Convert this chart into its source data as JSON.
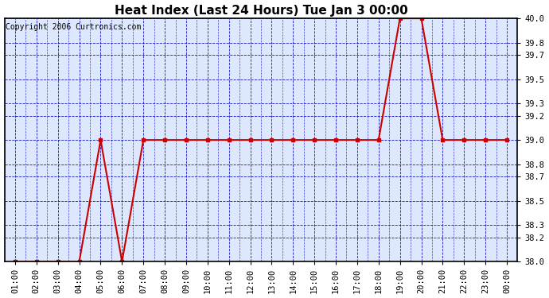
{
  "title": "Heat Index (Last 24 Hours) Tue Jan 3 00:00",
  "copyright": "Copyright 2006 Curtronics.com",
  "x_labels": [
    "01:00",
    "02:00",
    "03:00",
    "04:00",
    "05:00",
    "06:00",
    "07:00",
    "08:00",
    "09:00",
    "10:00",
    "11:00",
    "12:00",
    "13:00",
    "14:00",
    "15:00",
    "16:00",
    "17:00",
    "18:00",
    "19:00",
    "20:00",
    "21:00",
    "22:00",
    "23:00",
    "00:00"
  ],
  "y_values": [
    38.0,
    38.0,
    38.0,
    38.0,
    39.0,
    38.0,
    39.0,
    39.0,
    39.0,
    39.0,
    39.0,
    39.0,
    39.0,
    39.0,
    39.0,
    39.0,
    39.0,
    39.0,
    40.0,
    40.0,
    39.0,
    39.0,
    39.0,
    39.0
  ],
  "y_min": 38.0,
  "y_max": 40.0,
  "y_ticks": [
    38.0,
    38.2,
    38.3,
    38.5,
    38.7,
    38.8,
    39.0,
    39.2,
    39.3,
    39.5,
    39.7,
    39.8,
    40.0
  ],
  "line_color": "#cc0000",
  "marker": "s",
  "marker_size": 3,
  "grid_color": "#0000bb",
  "bg_color": "#ffffff",
  "plot_bg_color": "#dde8ff",
  "title_fontsize": 11,
  "tick_fontsize": 7.5,
  "copyright_fontsize": 7
}
